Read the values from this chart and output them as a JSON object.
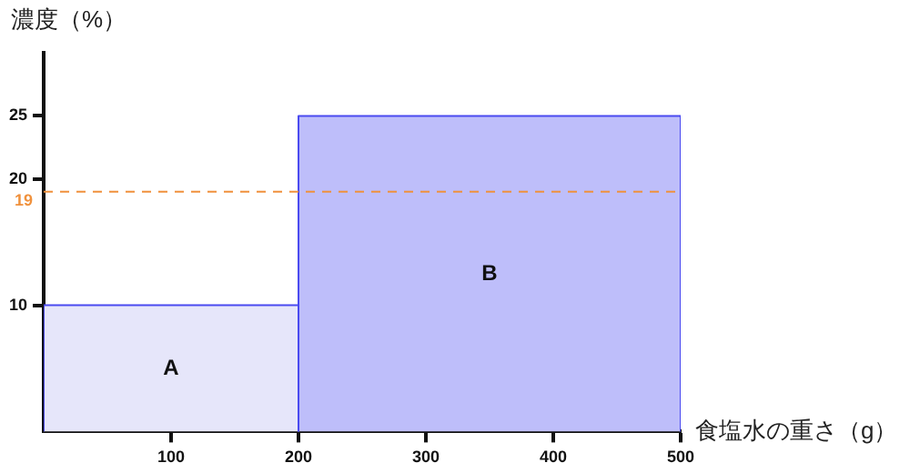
{
  "chart_data": {
    "type": "histogram",
    "xlabel": "食塩水の重さ（g）",
    "ylabel": "濃度（%）",
    "bins": [
      0,
      200,
      500
    ],
    "values": [
      10,
      25
    ],
    "colors": [
      "#e6e6fa",
      "#bebefa"
    ],
    "xlim": [
      0,
      500
    ],
    "xticks": [
      100,
      200,
      300,
      400,
      500
    ],
    "ylim": [
      0,
      30
    ],
    "yticks": [
      10,
      20,
      25
    ],
    "ref_lines": [
      {
        "axis": "y",
        "value": 19,
        "label": "19",
        "color": "#f0913c",
        "line_style": "dashed"
      }
    ],
    "annotations": [
      "A",
      "B"
    ],
    "legend": false,
    "grid": false
  }
}
